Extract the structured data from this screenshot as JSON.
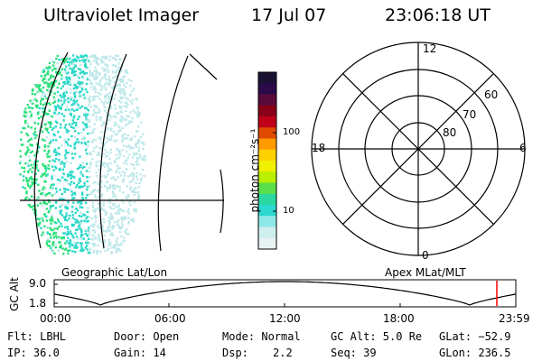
{
  "header": {
    "instrument": "Ultraviolet Imager",
    "date": "17 Jul 07",
    "time": "23:06:18 UT"
  },
  "colorbar": {
    "label": "photon cm⁻²s⁻¹",
    "ticks": [
      "100",
      "10"
    ],
    "colors": [
      "#1a1233",
      "#2b0a4a",
      "#5a0a3a",
      "#8a0018",
      "#c00018",
      "#e04a00",
      "#ff9a00",
      "#ffd000",
      "#f0f000",
      "#b8f000",
      "#5ae04a",
      "#2ad8a0",
      "#2ad8d0",
      "#8ee8e8",
      "#cfeeee",
      "#e8f2f2"
    ]
  },
  "geo_panel": {
    "colors": {
      "dense": "#2ae07a",
      "mid": "#2ad8c8",
      "light": "#bfe8ea"
    }
  },
  "polar_plot": {
    "mlt_labels": {
      "top": "12",
      "left": "18",
      "right": "6",
      "bottom": "0"
    },
    "lat_labels": [
      "60",
      "70",
      "80"
    ]
  },
  "timeline": {
    "y_axis_label": "GC Alt",
    "y_ticks": [
      "9.0",
      "1.8"
    ],
    "left_label": "Geographic Lat/Lon",
    "right_label": "Apex MLat/MLT",
    "x_ticks": [
      "00:00",
      "06:00",
      "12:00",
      "18:00",
      "23:59"
    ],
    "marker_color": "#ff0000"
  },
  "info": {
    "flt": "Flt: LBHL",
    "ip": "IP: 36.0",
    "door": "Door: Open",
    "gain": "Gain: 14",
    "mode": "Mode: Normal",
    "dsp_label": "Dsp:",
    "dsp_value": "2.2",
    "gc_alt": "GC Alt: 5.0 Re",
    "seq": "Seq: 39",
    "glat": "GLat: −52.9",
    "glon": "GLon: 236.5"
  }
}
